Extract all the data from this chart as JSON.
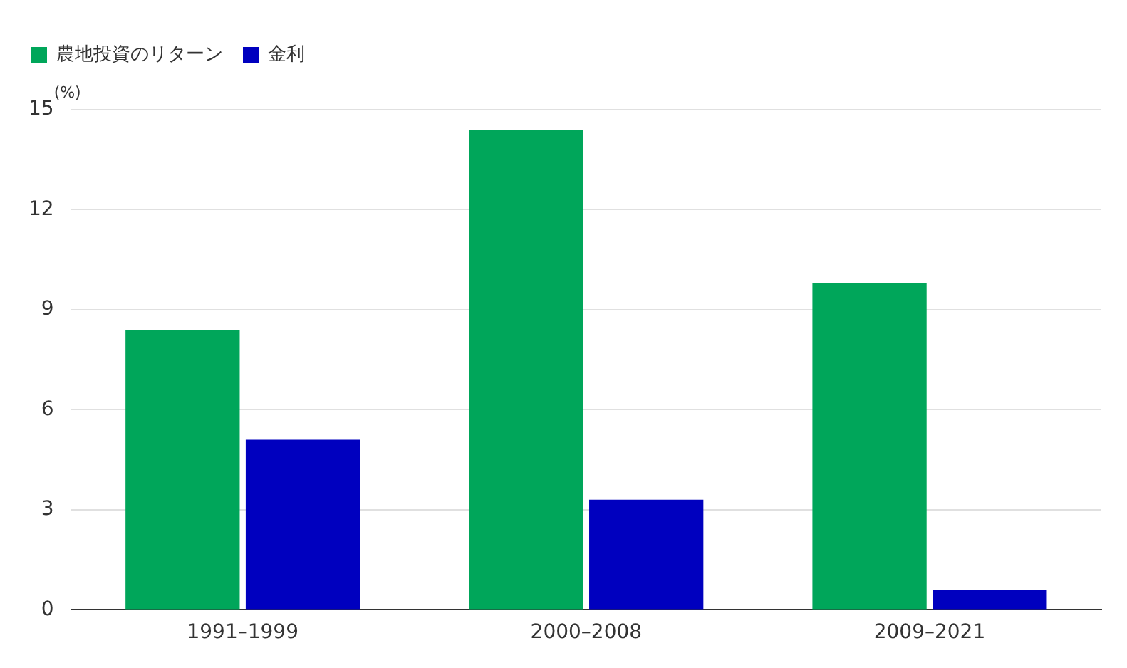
{
  "chart_data": {
    "type": "bar",
    "ylabel": "(%)",
    "categories": [
      "1991–1999",
      "2000–2008",
      "2009–2021"
    ],
    "series": [
      {
        "name": "農地投資のリターン",
        "color": "#00a65a",
        "values": [
          8.4,
          14.4,
          9.8
        ]
      },
      {
        "name": "金利",
        "color": "#0000bf",
        "values": [
          5.1,
          3.3,
          0.6
        ]
      }
    ],
    "ylim": [
      0,
      15
    ],
    "yticks": [
      0,
      3,
      6,
      9,
      12,
      15
    ],
    "grid": "y",
    "legend": "top left"
  }
}
